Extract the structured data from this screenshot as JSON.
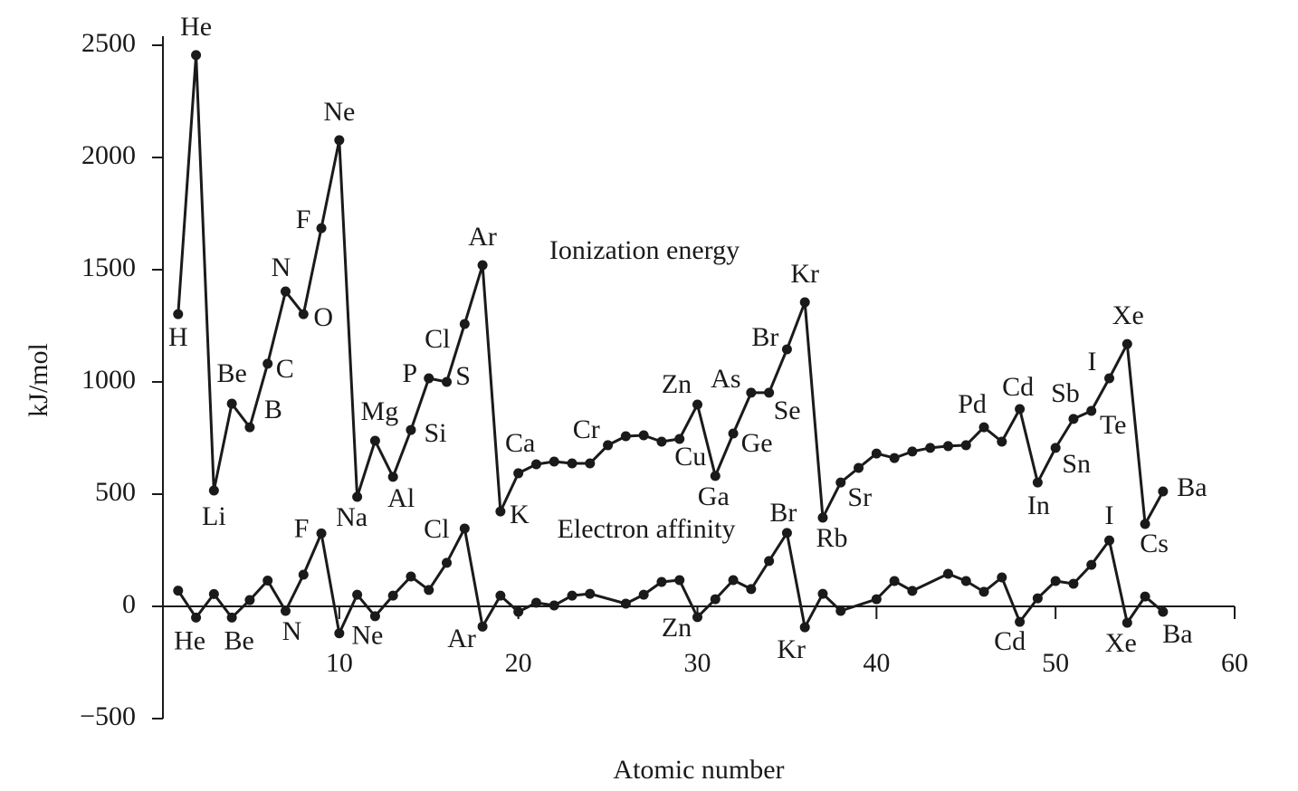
{
  "chart_data": {
    "type": "line",
    "x_label": "Atomic number",
    "y_label": "kJ/mol",
    "xlim": [
      0,
      60
    ],
    "xticks": [
      10,
      20,
      30,
      40,
      50,
      60
    ],
    "ylim": [
      -500,
      2500
    ],
    "yticks": [
      {
        "value": -500,
        "label": "−500"
      },
      0,
      500,
      1000,
      1500,
      2000,
      2500
    ],
    "grid": false,
    "series": [
      {
        "name": "Ionization energy",
        "color": "#1a1a1a",
        "x": [
          1,
          2,
          3,
          4,
          5,
          6,
          7,
          8,
          9,
          10,
          11,
          12,
          13,
          14,
          15,
          16,
          17,
          18,
          19,
          20,
          21,
          22,
          23,
          24,
          25,
          26,
          27,
          28,
          29,
          30,
          31,
          32,
          33,
          34,
          35,
          36,
          37,
          38,
          39,
          40,
          41,
          42,
          43,
          44,
          45,
          46,
          47,
          48,
          49,
          50,
          51,
          52,
          53,
          54,
          55,
          56
        ],
        "values": [
          1302,
          2456,
          516,
          903,
          798,
          1081,
          1403,
          1302,
          1685,
          2077,
          488,
          738,
          577,
          786,
          1016,
          1000,
          1258,
          1520,
          423,
          593,
          633,
          645,
          637,
          637,
          718,
          758,
          762,
          734,
          746,
          899,
          581,
          770,
          952,
          952,
          1145,
          1355,
          395,
          552,
          617,
          681,
          661,
          690,
          706,
          714,
          718,
          798,
          734,
          879,
          552,
          706,
          835,
          871,
          1016,
          1169,
          367,
          512
        ],
        "point_labels": [
          "H",
          "He",
          "Li",
          "Be",
          "B",
          "C",
          "N",
          "O",
          "F",
          "Ne",
          "Na",
          "Mg",
          "Al",
          "Si",
          "P",
          "S",
          "Cl",
          "Ar",
          "K",
          "Ca",
          null,
          null,
          null,
          "Cr",
          null,
          null,
          null,
          null,
          "Cu",
          "Zn",
          "Ga",
          "Ge",
          "As",
          "Se",
          "Br",
          "Kr",
          "Rb",
          "Sr",
          null,
          null,
          null,
          null,
          null,
          null,
          null,
          "Pd",
          null,
          "Cd",
          "In",
          "Sn",
          "Sb",
          "Te",
          "I",
          "Xe",
          "Cs",
          "Ba"
        ]
      },
      {
        "name": "Electron affinity",
        "color": "#1a1a1a",
        "x": [
          1,
          2,
          3,
          4,
          5,
          6,
          7,
          8,
          9,
          10,
          11,
          12,
          13,
          14,
          15,
          16,
          17,
          18,
          19,
          20,
          21,
          22,
          23,
          24,
          26,
          27,
          28,
          29,
          30,
          31,
          32,
          33,
          34,
          35,
          36,
          37,
          38,
          40,
          41,
          42,
          44,
          45,
          46,
          47,
          48,
          49,
          50,
          51,
          52,
          53,
          54,
          55,
          56
        ],
        "values": [
          70,
          -50,
          55,
          -50,
          28,
          115,
          -20,
          141,
          325,
          -120,
          52,
          -44,
          48,
          133,
          73,
          194,
          347,
          -90,
          48,
          -24,
          16,
          4,
          48,
          56,
          12,
          52,
          109,
          117,
          -48,
          32,
          117,
          77,
          202,
          327,
          -93,
          56,
          -20,
          32,
          113,
          69,
          145,
          113,
          65,
          129,
          -69,
          36,
          113,
          101,
          185,
          294,
          -73,
          44,
          -24
        ],
        "point_labels": [
          null,
          "He",
          null,
          "Be",
          null,
          null,
          "N",
          null,
          "F",
          "Ne",
          null,
          null,
          null,
          null,
          null,
          null,
          "Cl",
          "Ar",
          null,
          null,
          null,
          null,
          null,
          null,
          null,
          null,
          null,
          null,
          "Zn",
          null,
          null,
          null,
          null,
          "Br",
          "Kr",
          null,
          null,
          null,
          null,
          null,
          null,
          null,
          null,
          null,
          "Cd",
          null,
          null,
          null,
          null,
          "I",
          "Xe",
          null,
          "Ba"
        ]
      }
    ]
  }
}
